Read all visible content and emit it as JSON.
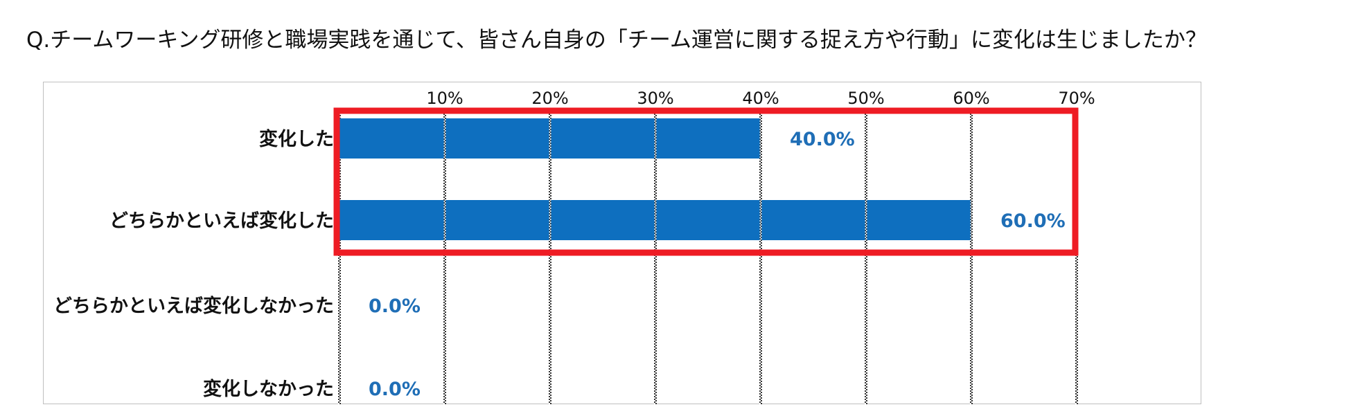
{
  "question": "Q.チームワーキング研修と職場実践を通じて、皆さん自身の「チーム運営に関する捉え方や行動」に変化は生じましたか？",
  "colors": {
    "bar": "#0e6fbf",
    "data_label": "#1f6eb6",
    "highlight": "#ee1c24",
    "frame": "#bfbfbf"
  },
  "chart_data": {
    "type": "bar",
    "orientation": "horizontal",
    "categories": [
      "変化した",
      "どちらかといえば変化した",
      "どちらかといえば変化しなかった",
      "変化しなかった"
    ],
    "values": [
      40.0,
      60.0,
      0.0,
      0.0
    ],
    "value_labels": [
      "40.0%",
      "60.0%",
      "0.0%",
      "0.0%"
    ],
    "x_ticks": [
      10,
      20,
      30,
      40,
      50,
      60,
      70
    ],
    "x_tick_labels": [
      "10%",
      "20%",
      "30%",
      "40%",
      "50%",
      "60%",
      "70%"
    ],
    "xlim": [
      0,
      70
    ],
    "grid": true,
    "highlight_categories": [
      "変化した",
      "どちらかといえば変化した"
    ]
  }
}
